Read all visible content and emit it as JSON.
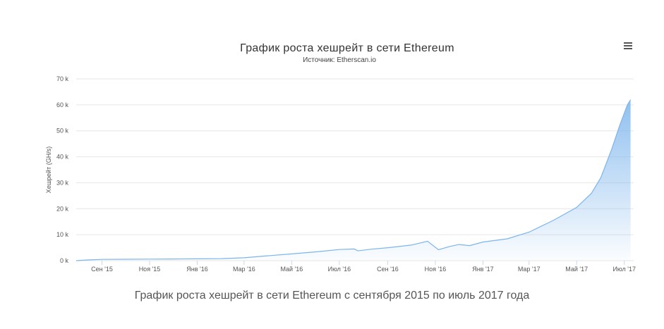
{
  "chart_data": {
    "type": "area",
    "title": "График роста хешрейт в сети Ethereum",
    "subtitle": "Источник: Etherscan.io",
    "ylabel": "Хешрейт (GH/s)",
    "xlabel": "",
    "ylim": [
      0,
      70000
    ],
    "y_ticks": [
      0,
      10000,
      20000,
      30000,
      40000,
      50000,
      60000,
      70000
    ],
    "y_tick_labels": [
      "0 k",
      "10 k",
      "20 k",
      "30 k",
      "40 k",
      "50 k",
      "60 k",
      "70 k"
    ],
    "x_start": "2015-07-30",
    "x_end": "2017-07-13",
    "x_ticks": [
      {
        "label": "Сен '15",
        "date": "2015-09-01"
      },
      {
        "label": "Ноя '15",
        "date": "2015-11-01"
      },
      {
        "label": "Янв '16",
        "date": "2016-01-01"
      },
      {
        "label": "Мар '16",
        "date": "2016-03-01"
      },
      {
        "label": "Май '16",
        "date": "2016-05-01"
      },
      {
        "label": "Июл '16",
        "date": "2016-07-01"
      },
      {
        "label": "Сен '16",
        "date": "2016-09-01"
      },
      {
        "label": "Ноя '16",
        "date": "2016-11-01"
      },
      {
        "label": "Янв '17",
        "date": "2017-01-01"
      },
      {
        "label": "Мар '17",
        "date": "2017-03-01"
      },
      {
        "label": "Май '17",
        "date": "2017-05-01"
      },
      {
        "label": "Июл '17",
        "date": "2017-07-01"
      }
    ],
    "grid": true,
    "legend": "none",
    "series": [
      {
        "color": "#7cb5ec",
        "points": [
          {
            "x": "2015-07-30",
            "y": 0
          },
          {
            "x": "2015-08-15",
            "y": 300
          },
          {
            "x": "2015-09-01",
            "y": 500
          },
          {
            "x": "2015-10-01",
            "y": 550
          },
          {
            "x": "2015-11-01",
            "y": 600
          },
          {
            "x": "2015-12-01",
            "y": 650
          },
          {
            "x": "2016-01-01",
            "y": 700
          },
          {
            "x": "2016-02-01",
            "y": 800
          },
          {
            "x": "2016-03-01",
            "y": 1100
          },
          {
            "x": "2016-04-01",
            "y": 1900
          },
          {
            "x": "2016-05-01",
            "y": 2600
          },
          {
            "x": "2016-06-01",
            "y": 3400
          },
          {
            "x": "2016-07-01",
            "y": 4300
          },
          {
            "x": "2016-07-20",
            "y": 4500
          },
          {
            "x": "2016-07-25",
            "y": 3800
          },
          {
            "x": "2016-08-10",
            "y": 4400
          },
          {
            "x": "2016-09-01",
            "y": 5000
          },
          {
            "x": "2016-10-01",
            "y": 6000
          },
          {
            "x": "2016-10-22",
            "y": 7500
          },
          {
            "x": "2016-11-05",
            "y": 4200
          },
          {
            "x": "2016-11-20",
            "y": 5500
          },
          {
            "x": "2016-12-01",
            "y": 6200
          },
          {
            "x": "2016-12-15",
            "y": 5800
          },
          {
            "x": "2017-01-01",
            "y": 7200
          },
          {
            "x": "2017-02-01",
            "y": 8400
          },
          {
            "x": "2017-03-01",
            "y": 11000
          },
          {
            "x": "2017-04-01",
            "y": 15500
          },
          {
            "x": "2017-05-01",
            "y": 20500
          },
          {
            "x": "2017-05-20",
            "y": 26000
          },
          {
            "x": "2017-06-01",
            "y": 32000
          },
          {
            "x": "2017-06-15",
            "y": 43000
          },
          {
            "x": "2017-06-25",
            "y": 52000
          },
          {
            "x": "2017-07-05",
            "y": 60000
          },
          {
            "x": "2017-07-09",
            "y": 62000
          }
        ]
      }
    ]
  },
  "caption": "График роста хешрейт в сети Ethereum с сентября 2015 по июль 2017 года",
  "menu_icon": "hamburger-icon"
}
